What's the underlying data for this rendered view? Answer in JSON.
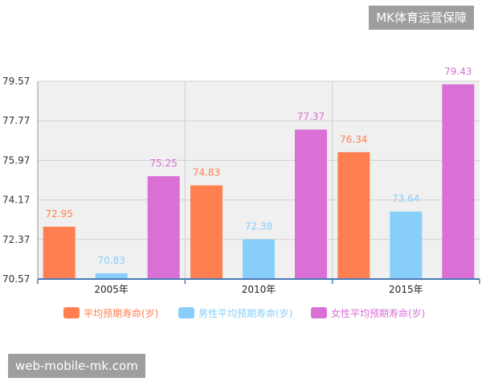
{
  "watermarks": {
    "top_right": "MK体育运营保障",
    "bottom_left": "web-mobile-mk.com"
  },
  "chart_data": {
    "type": "bar",
    "title": "",
    "xlabel": "",
    "ylabel": "",
    "categories": [
      "2005年",
      "2010年",
      "2015年"
    ],
    "series": [
      {
        "name": "平均预期寿命(岁)",
        "color": "#ff7f50",
        "values": [
          72.95,
          74.83,
          76.34
        ]
      },
      {
        "name": "男性平均预期寿命(岁)",
        "color": "#87cefa",
        "values": [
          70.83,
          72.38,
          73.64
        ]
      },
      {
        "name": "女性平均预期寿命(岁)",
        "color": "#da70d6",
        "values": [
          75.25,
          77.37,
          79.43
        ]
      }
    ],
    "yticks": [
      "79.57",
      "77.77",
      "75.97",
      "74.17",
      "72.37",
      "70.57"
    ],
    "ylim": [
      70.57,
      79.57
    ],
    "grid": true,
    "legend_position": "bottom",
    "data_labels": true
  }
}
